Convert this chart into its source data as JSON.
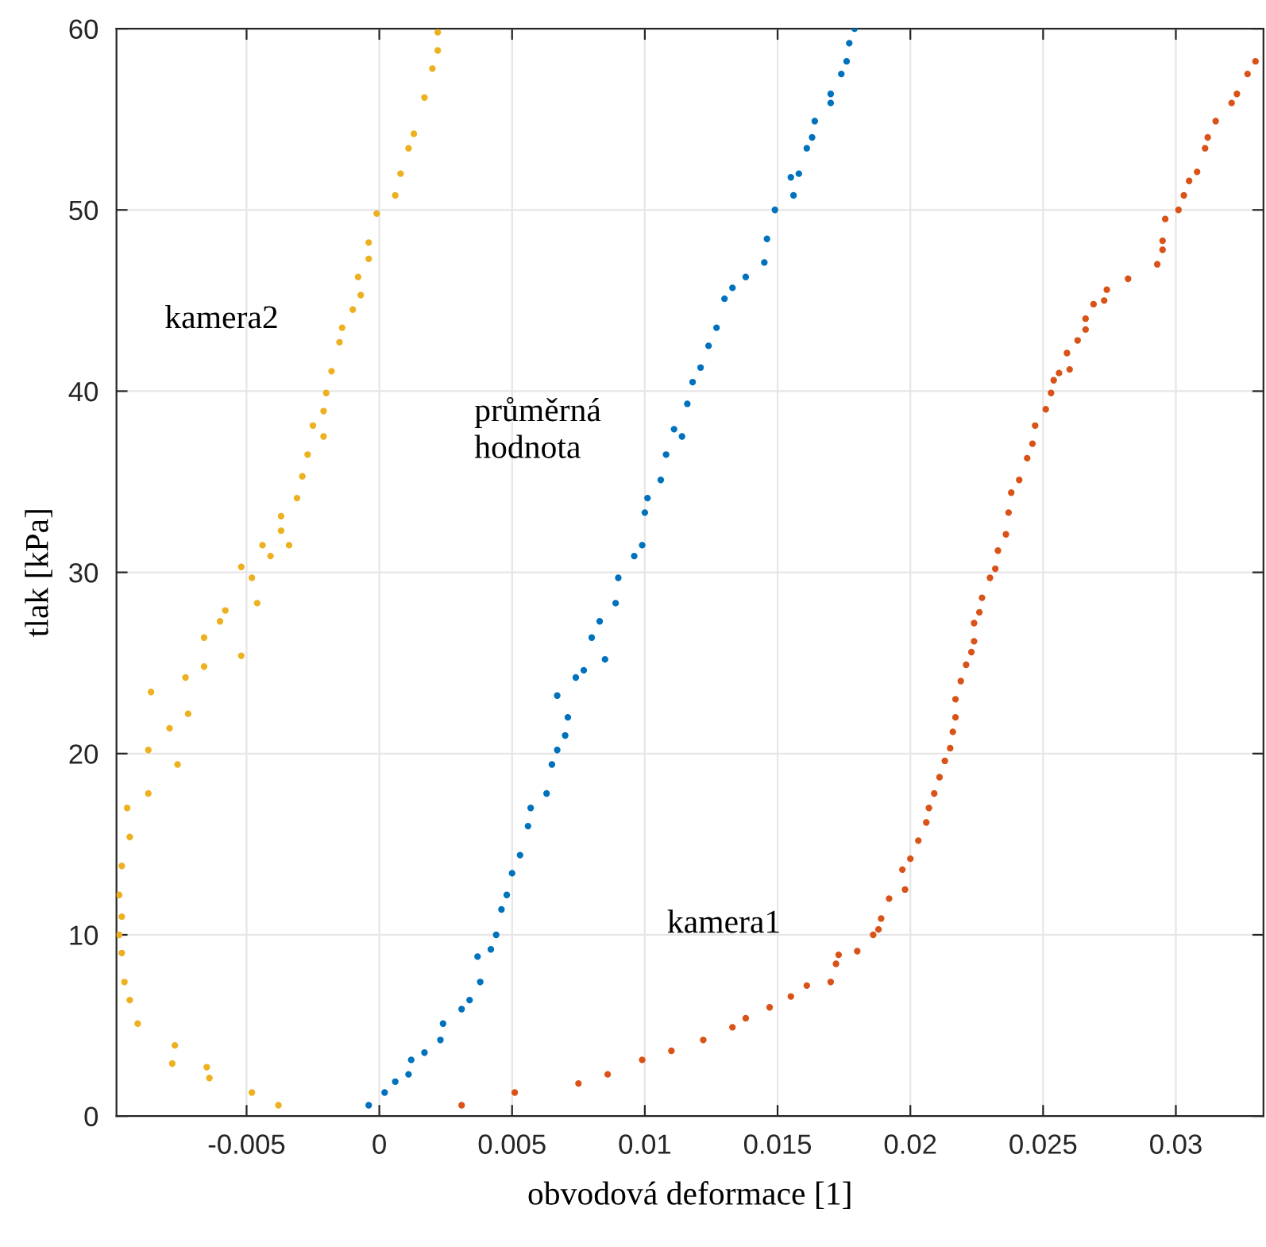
{
  "chart_data": {
    "type": "scatter",
    "xlabel": "obvodová deformace [1]",
    "ylabel": "tlak [kPa]",
    "xlim": [
      -0.0099,
      0.0333
    ],
    "ylim": [
      0,
      60
    ],
    "xticks": [
      -0.005,
      0,
      0.005,
      0.01,
      0.015,
      0.02,
      0.025,
      0.03
    ],
    "yticks": [
      0,
      10,
      20,
      30,
      40,
      50,
      60
    ],
    "grid": true,
    "marker": "circle",
    "series": [
      {
        "name": "průměrná\nhodnota",
        "color": "#0072bd",
        "x": [
          -0.0004,
          0.0002,
          0.0006,
          0.0011,
          0.0012,
          0.0017,
          0.0023,
          0.0024,
          0.0031,
          0.0034,
          0.0038,
          0.0037,
          0.0042,
          0.0044,
          0.0046,
          0.0048,
          0.005,
          0.0053,
          0.0056,
          0.0057,
          0.0063,
          0.0065,
          0.0067,
          0.007,
          0.0071,
          0.0067,
          0.0074,
          0.0077,
          0.008,
          0.0085,
          0.0083,
          0.0089,
          0.009,
          0.0096,
          0.0099,
          0.01,
          0.0101,
          0.0106,
          0.0108,
          0.0111,
          0.0114,
          0.0116,
          0.0118,
          0.0121,
          0.0124,
          0.0127,
          0.013,
          0.0133,
          0.0138,
          0.0145,
          0.0146,
          0.0149,
          0.0155,
          0.0156,
          0.0158,
          0.0161,
          0.0163,
          0.0164,
          0.017,
          0.017,
          0.0174,
          0.0176,
          0.0177,
          0.0179
        ],
        "values": [
          0.6,
          1.3,
          1.9,
          2.3,
          3.1,
          3.5,
          4.2,
          5.1,
          5.9,
          6.4,
          7.4,
          8.8,
          9.2,
          10,
          11.4,
          12.2,
          13.4,
          14.4,
          16,
          17,
          17.8,
          19.4,
          20.2,
          21,
          22,
          23.2,
          24.2,
          24.6,
          26.4,
          25.2,
          27.3,
          28.3,
          29.7,
          30.9,
          31.5,
          33.3,
          34.1,
          35.1,
          36.5,
          37.9,
          37.5,
          39.3,
          40.5,
          41.3,
          42.5,
          43.5,
          45.1,
          45.7,
          46.3,
          47.1,
          48.4,
          50,
          51.8,
          50.8,
          52,
          53.4,
          54,
          54.9,
          55.9,
          56.4,
          57.5,
          58.2,
          59.2,
          60
        ]
      },
      {
        "name": "kamera1",
        "color": "#d95319",
        "x": [
          0.0031,
          0.0051,
          0.0075,
          0.0086,
          0.0099,
          0.011,
          0.0122,
          0.0133,
          0.0138,
          0.0147,
          0.0155,
          0.0161,
          0.017,
          0.0172,
          0.0173,
          0.018,
          0.0186,
          0.0188,
          0.0189,
          0.0192,
          0.0198,
          0.0197,
          0.02,
          0.0203,
          0.0206,
          0.0207,
          0.0209,
          0.0211,
          0.0213,
          0.0215,
          0.0216,
          0.0217,
          0.0217,
          0.0219,
          0.0221,
          0.0223,
          0.0224,
          0.0224,
          0.0226,
          0.0227,
          0.023,
          0.0232,
          0.0233,
          0.0236,
          0.0237,
          0.0238,
          0.0241,
          0.0244,
          0.0246,
          0.0247,
          0.0251,
          0.0253,
          0.0254,
          0.0256,
          0.026,
          0.0259,
          0.0263,
          0.0266,
          0.0266,
          0.0269,
          0.0273,
          0.0274,
          0.0282,
          0.0293,
          0.0295,
          0.0295,
          0.0296,
          0.0301,
          0.0303,
          0.0305,
          0.0308,
          0.0311,
          0.0312,
          0.0315,
          0.0321,
          0.0323,
          0.0327,
          0.033
        ],
        "values": [
          0.6,
          1.3,
          1.8,
          2.3,
          3.1,
          3.6,
          4.2,
          4.9,
          5.4,
          6,
          6.6,
          7.2,
          7.4,
          8.4,
          8.9,
          9.1,
          10,
          10.3,
          10.9,
          12,
          12.5,
          13.6,
          14.2,
          15.2,
          16.2,
          17,
          17.8,
          18.7,
          19.6,
          20.3,
          21.2,
          22,
          23,
          24,
          24.9,
          25.6,
          26.2,
          27.2,
          27.8,
          28.6,
          29.7,
          30.2,
          31.2,
          32.1,
          33.3,
          34.4,
          35.1,
          36.3,
          37.1,
          38.1,
          39,
          39.9,
          40.6,
          41,
          41.2,
          42.1,
          42.8,
          43.4,
          44,
          44.8,
          45,
          45.6,
          46.2,
          47,
          47.8,
          48.3,
          49.5,
          50,
          50.8,
          51.6,
          52.1,
          53.4,
          54,
          54.9,
          55.9,
          56.4,
          57.5,
          58.2
        ]
      },
      {
        "name": "kamera2",
        "color": "#edb120",
        "x": [
          -0.0038,
          -0.0048,
          -0.0065,
          -0.0064,
          -0.0077,
          -0.0078,
          -0.0091,
          -0.0094,
          -0.0096,
          -0.0097,
          -0.0098,
          -0.0097,
          -0.0098,
          -0.0097,
          -0.0094,
          -0.0095,
          -0.0087,
          -0.0087,
          -0.0086,
          -0.0079,
          -0.0076,
          -0.0073,
          -0.0072,
          -0.0066,
          -0.0066,
          -0.006,
          -0.0058,
          -0.0052,
          -0.0052,
          -0.0048,
          -0.0046,
          -0.0044,
          -0.0041,
          -0.0037,
          -0.0034,
          -0.0037,
          -0.0031,
          -0.0029,
          -0.0027,
          -0.0025,
          -0.0021,
          -0.0021,
          -0.002,
          -0.0018,
          -0.0015,
          -0.0014,
          -0.001,
          -0.0007,
          -0.0008,
          -0.0004,
          -0.0004,
          -0.0001,
          0.0006,
          0.0008,
          0.0011,
          0.0013,
          0.0017,
          0.002,
          0.0022,
          0.0022
        ],
        "values": [
          0.6,
          1.3,
          2.7,
          2.1,
          3.9,
          2.9,
          5.1,
          6.4,
          7.4,
          9,
          10,
          11,
          12.2,
          13.8,
          15.4,
          17,
          17.8,
          20.2,
          23.4,
          21.4,
          19.4,
          24.2,
          22.2,
          24.8,
          26.4,
          27.3,
          27.9,
          25.4,
          30.3,
          29.7,
          28.3,
          31.5,
          30.9,
          32.3,
          31.5,
          33.1,
          34.1,
          35.3,
          36.5,
          38.1,
          37.5,
          38.9,
          39.9,
          41.1,
          42.7,
          43.5,
          44.5,
          45.3,
          46.3,
          47.3,
          48.2,
          49.8,
          50.8,
          52,
          53.4,
          54.2,
          56.2,
          57.8,
          58.8,
          59.8
        ]
      }
    ]
  }
}
